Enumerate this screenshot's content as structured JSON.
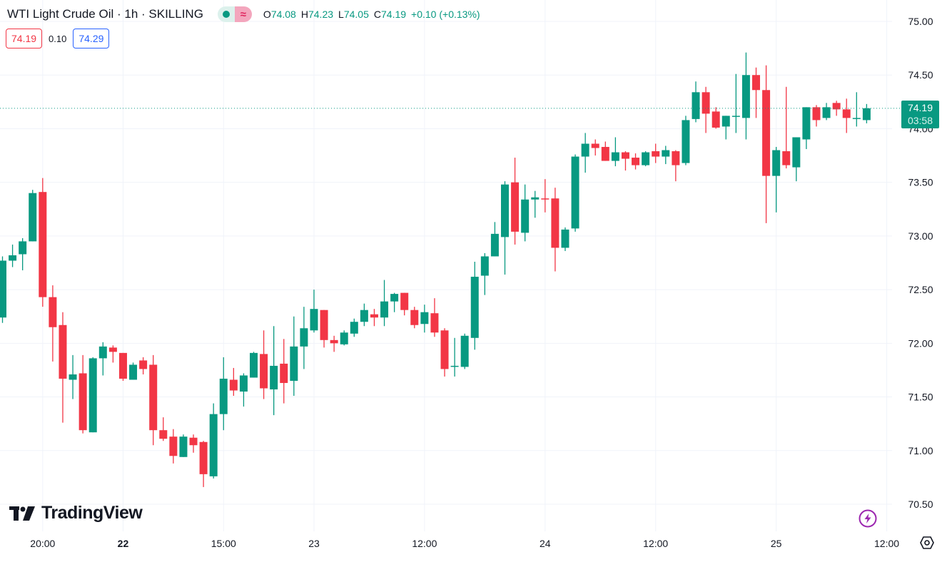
{
  "header": {
    "title": "WTI Light Crude Oil · 1h · SKILLING",
    "ohlc": [
      {
        "k": "O",
        "v": "74.08"
      },
      {
        "k": "H",
        "v": "74.23"
      },
      {
        "k": "L",
        "v": "74.05"
      },
      {
        "k": "C",
        "v": "74.19"
      }
    ],
    "change": "+0.10 (+0.13%)",
    "market_status_icon": "market-open-dot-icon",
    "data_icon": "delayed-data-wave-icon"
  },
  "trade": {
    "sell": "74.19",
    "spread": "0.10",
    "buy": "74.29"
  },
  "last_price": {
    "price": "74.19",
    "countdown": "03:58"
  },
  "logo": "TradingView",
  "colors": {
    "up": "#089981",
    "down": "#f23645",
    "grid": "#f0f3fa",
    "text": "#131722",
    "bolt": "#9c27b0"
  },
  "chart_data": {
    "type": "candlestick",
    "title": "WTI Light Crude Oil · 1h · SKILLING",
    "ylim": [
      70.3,
      75.15
    ],
    "grid": true,
    "y_ticks": [
      "75.00",
      "74.50",
      "74.00",
      "73.50",
      "73.00",
      "72.50",
      "72.00",
      "71.50",
      "71.00",
      "70.50"
    ],
    "x_ticks": [
      {
        "bar": 4,
        "label": "20:00",
        "bold": false
      },
      {
        "bar": 12,
        "label": "22",
        "bold": true
      },
      {
        "bar": 22,
        "label": "15:00",
        "bold": false
      },
      {
        "bar": 31,
        "label": "23",
        "bold": false
      },
      {
        "bar": 42,
        "label": "12:00",
        "bold": false
      },
      {
        "bar": 54,
        "label": "24",
        "bold": false
      },
      {
        "bar": 65,
        "label": "12:00",
        "bold": false
      },
      {
        "bar": 77,
        "label": "25",
        "bold": false
      },
      {
        "bar": 88,
        "label": "12:00",
        "bold": false
      }
    ],
    "ohlc_fields": [
      "open",
      "high",
      "low",
      "close"
    ],
    "candles": [
      [
        72.24,
        72.81,
        72.19,
        72.77
      ],
      [
        72.77,
        72.92,
        72.71,
        72.82
      ],
      [
        72.83,
        72.98,
        72.68,
        72.95
      ],
      [
        72.95,
        73.43,
        72.95,
        73.4
      ],
      [
        73.41,
        73.54,
        72.34,
        72.43
      ],
      [
        72.43,
        72.54,
        71.83,
        72.15
      ],
      [
        72.17,
        72.29,
        71.26,
        71.67
      ],
      [
        71.66,
        71.89,
        71.48,
        71.71
      ],
      [
        71.72,
        71.89,
        71.16,
        71.19
      ],
      [
        71.17,
        71.87,
        71.17,
        71.86
      ],
      [
        71.86,
        72.01,
        71.7,
        71.97
      ],
      [
        71.96,
        71.98,
        71.82,
        71.92
      ],
      [
        71.91,
        71.91,
        71.65,
        71.67
      ],
      [
        71.66,
        71.82,
        71.66,
        71.8
      ],
      [
        71.84,
        71.87,
        71.71,
        71.76
      ],
      [
        71.8,
        71.89,
        71.05,
        71.19
      ],
      [
        71.19,
        71.31,
        71.09,
        71.11
      ],
      [
        71.13,
        71.2,
        70.88,
        70.95
      ],
      [
        70.94,
        71.15,
        70.94,
        71.13
      ],
      [
        71.12,
        71.15,
        70.98,
        71.05
      ],
      [
        71.08,
        71.09,
        70.66,
        70.78
      ],
      [
        70.76,
        71.44,
        70.74,
        71.34
      ],
      [
        71.34,
        71.87,
        71.19,
        71.67
      ],
      [
        71.66,
        71.77,
        71.51,
        71.56
      ],
      [
        71.55,
        71.72,
        71.41,
        71.7
      ],
      [
        71.68,
        71.92,
        71.68,
        71.91
      ],
      [
        71.9,
        72.12,
        71.48,
        71.58
      ],
      [
        71.57,
        72.16,
        71.33,
        71.79
      ],
      [
        71.81,
        72.04,
        71.44,
        71.63
      ],
      [
        71.65,
        72.25,
        71.51,
        71.97
      ],
      [
        71.97,
        72.34,
        71.76,
        72.14
      ],
      [
        72.12,
        72.5,
        72.1,
        72.32
      ],
      [
        72.31,
        72.31,
        71.96,
        72.03
      ],
      [
        72.03,
        72.07,
        71.92,
        72.0
      ],
      [
        71.99,
        72.12,
        71.98,
        72.1
      ],
      [
        72.09,
        72.23,
        72.06,
        72.2
      ],
      [
        72.2,
        72.37,
        72.16,
        72.31
      ],
      [
        72.27,
        72.32,
        72.16,
        72.24
      ],
      [
        72.24,
        72.59,
        72.16,
        72.39
      ],
      [
        72.39,
        72.47,
        72.29,
        72.46
      ],
      [
        72.47,
        72.47,
        72.26,
        72.31
      ],
      [
        72.31,
        72.34,
        72.14,
        72.17
      ],
      [
        72.18,
        72.36,
        72.1,
        72.29
      ],
      [
        72.28,
        72.42,
        72.06,
        72.1
      ],
      [
        72.12,
        72.14,
        71.69,
        71.76
      ],
      [
        71.78,
        72.05,
        71.69,
        71.79
      ],
      [
        71.78,
        72.09,
        71.76,
        72.07
      ],
      [
        72.05,
        72.76,
        71.94,
        72.62
      ],
      [
        72.63,
        72.84,
        72.45,
        72.81
      ],
      [
        72.81,
        73.13,
        72.81,
        73.02
      ],
      [
        72.99,
        73.51,
        72.64,
        73.48
      ],
      [
        73.5,
        73.73,
        72.92,
        73.04
      ],
      [
        73.03,
        73.48,
        72.95,
        73.34
      ],
      [
        73.34,
        73.42,
        73.17,
        73.36
      ],
      [
        73.35,
        73.53,
        73.22,
        73.34
      ],
      [
        73.35,
        73.45,
        72.67,
        72.89
      ],
      [
        72.89,
        73.08,
        72.86,
        73.06
      ],
      [
        73.07,
        73.76,
        73.04,
        73.74
      ],
      [
        73.74,
        73.96,
        73.59,
        73.86
      ],
      [
        73.86,
        73.9,
        73.75,
        73.82
      ],
      [
        73.83,
        73.88,
        73.7,
        73.7
      ],
      [
        73.7,
        73.92,
        73.65,
        73.78
      ],
      [
        73.78,
        73.79,
        73.61,
        73.72
      ],
      [
        73.73,
        73.77,
        73.62,
        73.66
      ],
      [
        73.66,
        73.79,
        73.65,
        73.78
      ],
      [
        73.79,
        73.86,
        73.68,
        73.74
      ],
      [
        73.74,
        73.84,
        73.67,
        73.8
      ],
      [
        73.79,
        73.8,
        73.51,
        73.66
      ],
      [
        73.68,
        74.12,
        73.66,
        74.08
      ],
      [
        74.09,
        74.44,
        74.06,
        74.34
      ],
      [
        74.34,
        74.39,
        73.96,
        74.14
      ],
      [
        74.16,
        74.2,
        74.0,
        74.01
      ],
      [
        74.02,
        74.12,
        73.9,
        74.12
      ],
      [
        74.12,
        74.51,
        73.96,
        74.12
      ],
      [
        74.1,
        74.71,
        73.9,
        74.5
      ],
      [
        74.5,
        74.57,
        74.1,
        74.36
      ],
      [
        74.36,
        74.59,
        73.12,
        73.56
      ],
      [
        73.56,
        73.83,
        73.22,
        73.8
      ],
      [
        73.79,
        74.39,
        73.63,
        73.66
      ],
      [
        73.64,
        73.92,
        73.51,
        73.92
      ],
      [
        73.9,
        74.2,
        73.81,
        74.2
      ],
      [
        74.2,
        74.22,
        74.02,
        74.08
      ],
      [
        74.1,
        74.24,
        74.08,
        74.2
      ],
      [
        74.24,
        74.26,
        74.12,
        74.18
      ],
      [
        74.18,
        74.28,
        73.96,
        74.1
      ],
      [
        74.1,
        74.34,
        74.02,
        74.1
      ],
      [
        74.08,
        74.23,
        74.05,
        74.19
      ]
    ],
    "last_price": 74.19
  }
}
